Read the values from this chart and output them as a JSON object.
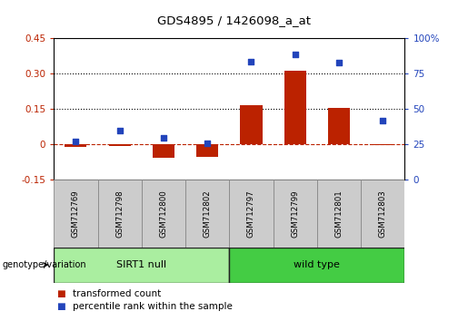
{
  "title": "GDS4895 / 1426098_a_at",
  "samples": [
    "GSM712769",
    "GSM712798",
    "GSM712800",
    "GSM712802",
    "GSM712797",
    "GSM712799",
    "GSM712801",
    "GSM712803"
  ],
  "transformed_count": [
    -0.012,
    -0.005,
    -0.058,
    -0.052,
    0.165,
    0.315,
    0.155,
    -0.004
  ],
  "percentile_rank": [
    0.27,
    0.35,
    0.3,
    0.26,
    0.835,
    0.89,
    0.83,
    0.42
  ],
  "groups": [
    {
      "label": "SIRT1 null",
      "indices": [
        0,
        1,
        2,
        3
      ],
      "color": "#AAEEA0"
    },
    {
      "label": "wild type",
      "indices": [
        4,
        5,
        6,
        7
      ],
      "color": "#44CC44"
    }
  ],
  "bar_color": "#BB2200",
  "dot_color": "#2244BB",
  "left_ylim": [
    -0.15,
    0.45
  ],
  "right_ylim": [
    0,
    1.0
  ],
  "left_yticks": [
    -0.15,
    0,
    0.15,
    0.3,
    0.45
  ],
  "left_yticklabels": [
    "-0.15",
    "0",
    "0.15",
    "0.30",
    "0.45"
  ],
  "right_yticks": [
    0,
    0.25,
    0.5,
    0.75,
    1.0
  ],
  "right_yticklabels": [
    "0",
    "25",
    "50",
    "75",
    "100%"
  ],
  "hlines": [
    0.15,
    0.3
  ],
  "legend_items": [
    "transformed count",
    "percentile rank within the sample"
  ],
  "genotype_label": "genotype/variation"
}
